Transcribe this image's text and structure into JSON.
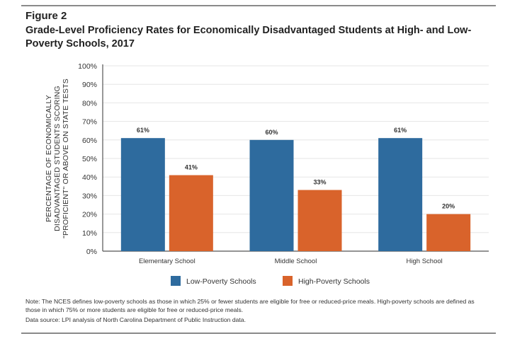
{
  "figure": {
    "label": "Figure 2",
    "title": "Grade-Level Proficiency Rates for Economically Disadvantaged Students at High- and Low-Poverty Schools, 2017",
    "note": "Note: The NCES defines low-poverty schools as those in which 25% or fewer students are eligible for free or reduced-price meals. High-poverty schools are defined as those in which 75% or more students are eligible for free or reduced-price meals.",
    "source": "Data source: LPI analysis of North Carolina Department of Public Instruction data."
  },
  "colors": {
    "low_poverty": "#2e6b9e",
    "high_poverty": "#d9632b",
    "axis": "#555555",
    "grid": "#e6e6e6"
  },
  "chart_data": {
    "type": "bar",
    "title": "Grade-Level Proficiency Rates for Economically Disadvantaged Students at High- and Low-Poverty Schools, 2017",
    "ylabel_lines": [
      "PERCENTAGE OF ECONOMICALLY",
      "DISADVANTAGED STUDENTS SCORING",
      "\"PROFICIENT\" OR ABOVE ON STATE TESTS"
    ],
    "categories": [
      "Elementary School",
      "Middle School",
      "High School"
    ],
    "series": [
      {
        "name": "Low-Poverty Schools",
        "values": [
          61,
          60,
          61
        ],
        "labels": [
          "61%",
          "60%",
          "61%"
        ]
      },
      {
        "name": "High-Poverty Schools",
        "values": [
          41,
          33,
          20
        ],
        "labels": [
          "41%",
          "33%",
          "20%"
        ]
      }
    ],
    "yticks": [
      "0%",
      "10%",
      "20%",
      "30%",
      "40%",
      "50%",
      "60%",
      "70%",
      "80%",
      "90%",
      "100%"
    ],
    "ylim": [
      0,
      100
    ],
    "legend_position": "bottom-center"
  }
}
